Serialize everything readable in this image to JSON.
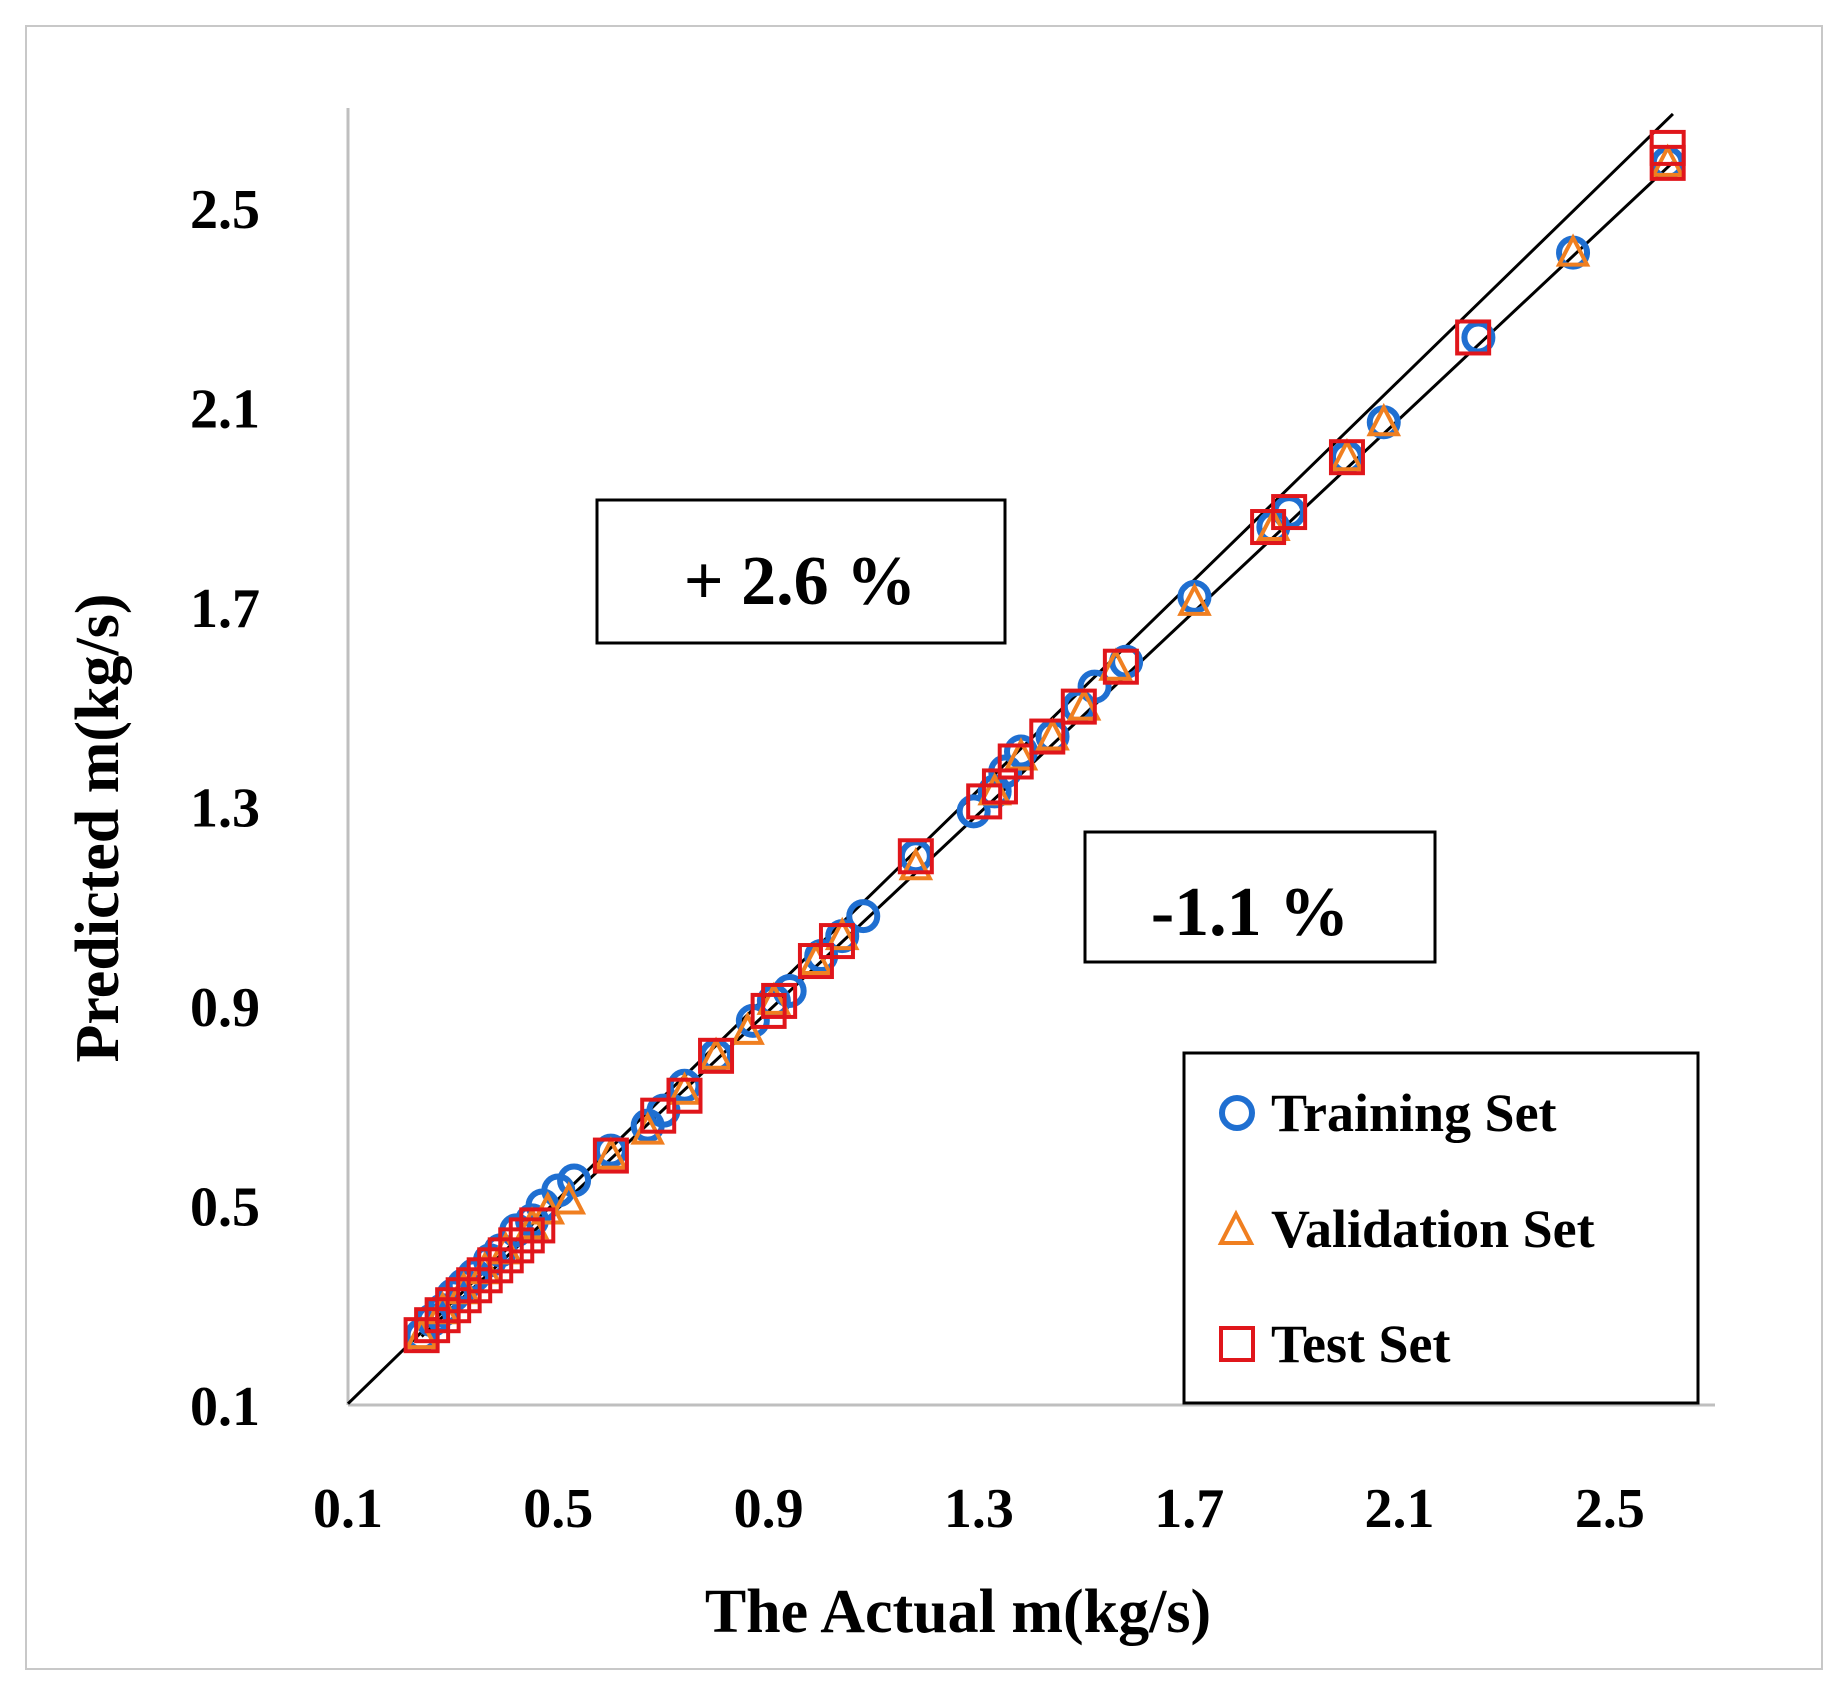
{
  "chart_data": {
    "type": "scatter",
    "title": "",
    "xlabel": "The Actual m(kg/s)",
    "ylabel": "Predicted m(kg/s)",
    "xlim": [
      0.1,
      2.7
    ],
    "ylim": [
      0.1,
      2.7
    ],
    "xticks": [
      "0.1",
      "0.5",
      "0.9",
      "1.3",
      "1.7",
      "2.1",
      "2.5"
    ],
    "yticks": [
      "0.1",
      "0.5",
      "0.9",
      "1.3",
      "1.7",
      "2.1",
      "2.5"
    ],
    "grid": false,
    "legend_position": "bottom-right",
    "bounds": [
      {
        "name": "+2.6 % bound",
        "slope": 1.026,
        "x": [
          0.1,
          2.62
        ]
      },
      {
        "name": "-1.1 % bound",
        "slope": 0.989,
        "x": [
          0.24,
          2.62
        ]
      }
    ],
    "annotations": [
      {
        "text": "+ 2.6 %"
      },
      {
        "text": "-1.1 %"
      }
    ],
    "series": [
      {
        "name": "Training Set",
        "marker": "circle",
        "color": "#1f6fd1",
        "points": [
          [
            0.24,
            0.24
          ],
          [
            0.26,
            0.27
          ],
          [
            0.28,
            0.29
          ],
          [
            0.3,
            0.32
          ],
          [
            0.32,
            0.34
          ],
          [
            0.34,
            0.36
          ],
          [
            0.37,
            0.39
          ],
          [
            0.39,
            0.41
          ],
          [
            0.42,
            0.45
          ],
          [
            0.45,
            0.47
          ],
          [
            0.47,
            0.5
          ],
          [
            0.5,
            0.53
          ],
          [
            0.53,
            0.55
          ],
          [
            0.6,
            0.61
          ],
          [
            0.67,
            0.66
          ],
          [
            0.7,
            0.69
          ],
          [
            0.74,
            0.74
          ],
          [
            0.8,
            0.8
          ],
          [
            0.87,
            0.87
          ],
          [
            0.91,
            0.91
          ],
          [
            0.94,
            0.93
          ],
          [
            1.0,
            1.0
          ],
          [
            1.04,
            1.04
          ],
          [
            1.08,
            1.08
          ],
          [
            1.18,
            1.2
          ],
          [
            1.29,
            1.29
          ],
          [
            1.33,
            1.33
          ],
          [
            1.35,
            1.37
          ],
          [
            1.38,
            1.41
          ],
          [
            1.44,
            1.44
          ],
          [
            1.49,
            1.5
          ],
          [
            1.52,
            1.54
          ],
          [
            1.58,
            1.59
          ],
          [
            1.71,
            1.72
          ],
          [
            1.86,
            1.86
          ],
          [
            1.89,
            1.89
          ],
          [
            2.0,
            2.0
          ],
          [
            2.07,
            2.07
          ],
          [
            2.25,
            2.24
          ],
          [
            2.43,
            2.41
          ],
          [
            2.61,
            2.59
          ]
        ]
      },
      {
        "name": "Validation Set",
        "marker": "triangle",
        "color": "#f07f20",
        "points": [
          [
            0.24,
            0.24
          ],
          [
            0.28,
            0.29
          ],
          [
            0.32,
            0.33
          ],
          [
            0.36,
            0.37
          ],
          [
            0.4,
            0.41
          ],
          [
            0.45,
            0.46
          ],
          [
            0.48,
            0.49
          ],
          [
            0.52,
            0.51
          ],
          [
            0.6,
            0.6
          ],
          [
            0.67,
            0.65
          ],
          [
            0.74,
            0.73
          ],
          [
            0.8,
            0.8
          ],
          [
            0.86,
            0.85
          ],
          [
            0.91,
            0.91
          ],
          [
            0.99,
            0.99
          ],
          [
            1.04,
            1.04
          ],
          [
            1.18,
            1.18
          ],
          [
            1.33,
            1.33
          ],
          [
            1.38,
            1.4
          ],
          [
            1.44,
            1.44
          ],
          [
            1.5,
            1.5
          ],
          [
            1.56,
            1.58
          ],
          [
            1.71,
            1.71
          ],
          [
            1.86,
            1.86
          ],
          [
            2.0,
            2.0
          ],
          [
            2.07,
            2.07
          ],
          [
            2.43,
            2.41
          ],
          [
            2.61,
            2.59
          ]
        ]
      },
      {
        "name": "Test Set",
        "marker": "square",
        "color": "#e0161b",
        "points": [
          [
            0.24,
            0.24
          ],
          [
            0.26,
            0.26
          ],
          [
            0.28,
            0.28
          ],
          [
            0.3,
            0.3
          ],
          [
            0.32,
            0.32
          ],
          [
            0.34,
            0.34
          ],
          [
            0.36,
            0.36
          ],
          [
            0.38,
            0.38
          ],
          [
            0.4,
            0.4
          ],
          [
            0.42,
            0.42
          ],
          [
            0.44,
            0.44
          ],
          [
            0.46,
            0.46
          ],
          [
            0.6,
            0.6
          ],
          [
            0.69,
            0.68
          ],
          [
            0.74,
            0.72
          ],
          [
            0.8,
            0.8
          ],
          [
            0.9,
            0.89
          ],
          [
            0.92,
            0.91
          ],
          [
            0.99,
            0.99
          ],
          [
            1.03,
            1.03
          ],
          [
            1.18,
            1.2
          ],
          [
            1.31,
            1.31
          ],
          [
            1.34,
            1.34
          ],
          [
            1.37,
            1.39
          ],
          [
            1.43,
            1.44
          ],
          [
            1.49,
            1.5
          ],
          [
            1.57,
            1.58
          ],
          [
            1.85,
            1.86
          ],
          [
            1.89,
            1.89
          ],
          [
            2.0,
            2.0
          ],
          [
            2.24,
            2.24
          ],
          [
            2.61,
            2.62
          ],
          [
            2.61,
            2.59
          ]
        ]
      }
    ]
  },
  "legend": {
    "training": "Training Set",
    "validation": "Validation Set",
    "test": "Test Set"
  }
}
